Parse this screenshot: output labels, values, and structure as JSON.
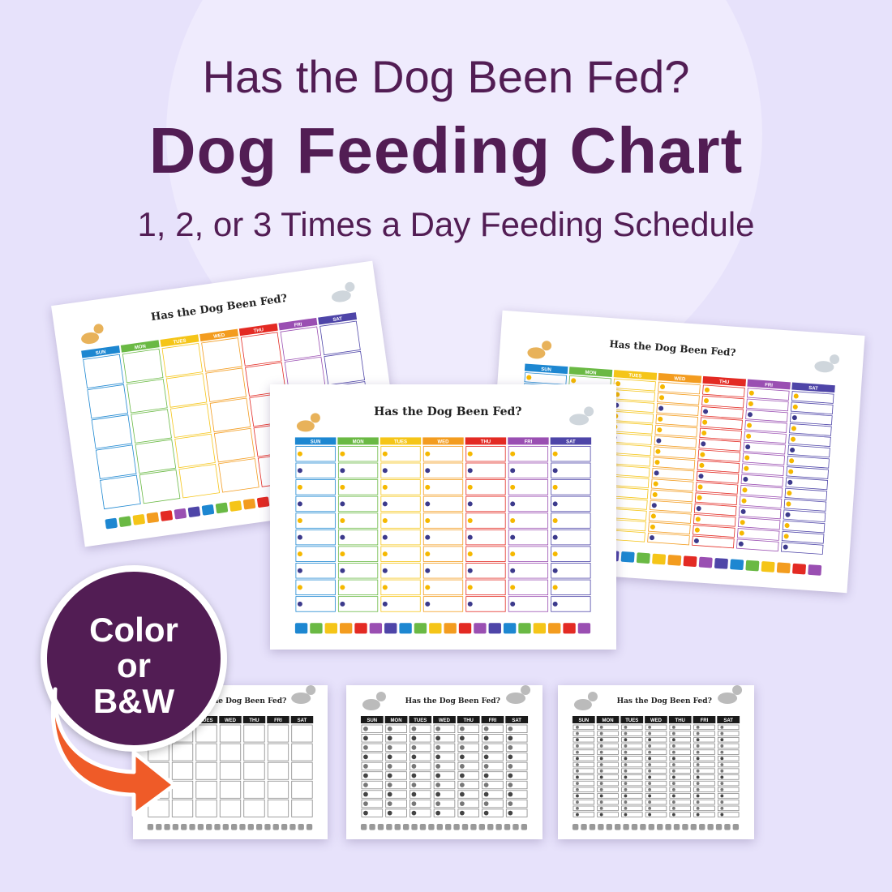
{
  "header": {
    "title_line1": "Has the Dog Been Fed?",
    "title_line2": "Dog Feeding Chart",
    "subtitle": "1, 2, or 3 Times a Day Feeding Schedule"
  },
  "chart_sheet": {
    "title": "Has the Dog Been Fed?",
    "days": [
      "SUN",
      "MON",
      "TUES",
      "WED",
      "THU",
      "FRI",
      "SAT"
    ],
    "day_colors": [
      "#1d87d1",
      "#6ab944",
      "#f5c518",
      "#f39c1f",
      "#e32a23",
      "#9a4fb2",
      "#4e45a8"
    ]
  },
  "badge": {
    "line1": "Color",
    "line2": "or",
    "line3": "B&W"
  },
  "colors": {
    "background": "#e7e2fb",
    "title": "#521d54",
    "badge": "#521d54",
    "arrow": "#ef5b28"
  }
}
